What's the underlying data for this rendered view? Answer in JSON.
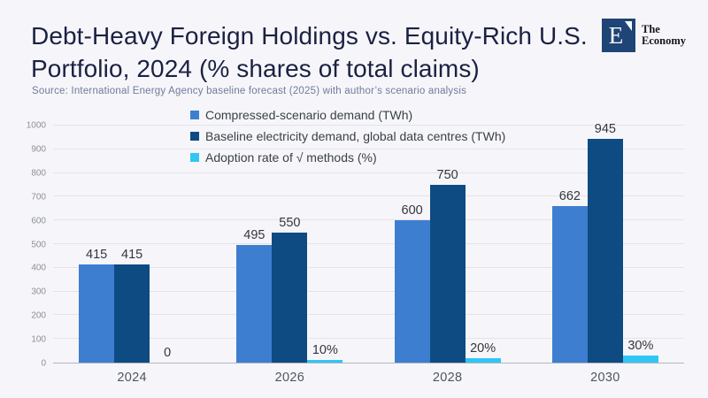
{
  "header": {
    "title": "Debt-Heavy Foreign Holdings vs. Equity-Rich U.S. Portfolio, 2024 (% shares of total claims)",
    "logo": {
      "mark": "E",
      "name_line1": "The",
      "name_line2": "Economy",
      "box_color": "#1f4476"
    }
  },
  "source": "Source:  International Energy Agency baseline forecast (2025) with author’s scenario analysis",
  "chart_data": {
    "type": "bar",
    "title": "Debt-Heavy Foreign Holdings vs. Equity-Rich U.S. Portfolio, 2024 (% shares of total claims)",
    "categories": [
      "2024",
      "2026",
      "2028",
      "2030"
    ],
    "series": [
      {
        "name": "Compressed-scenario demand (TWh)",
        "color": "#3d7ed0",
        "values": [
          415,
          495,
          600,
          662
        ],
        "labels": [
          "415",
          "495",
          "600",
          "662"
        ]
      },
      {
        "name": "Baseline electricity demand, global data centres (TWh)",
        "color": "#0e4b82",
        "values": [
          415,
          550,
          750,
          945
        ],
        "labels": [
          "415",
          "550",
          "750",
          "945"
        ]
      },
      {
        "name": "Adoption rate of √ methods (%)",
        "color": "#2fc6f5",
        "values": [
          0,
          10,
          20,
          30
        ],
        "labels": [
          "0",
          "10%",
          "20%",
          "30%"
        ]
      }
    ],
    "xlabel": "",
    "ylabel": "",
    "ylim": [
      0,
      1000
    ],
    "yticks": [
      0,
      100,
      200,
      300,
      400,
      500,
      600,
      700,
      800,
      900,
      1000
    ],
    "grid": true,
    "legend_position": "top-center",
    "colors": {
      "background": "#f6f6fa",
      "gridline": "#e3e3e9",
      "axis_line": "#b3b6bf",
      "tick_label": "#8b9097",
      "value_label": "#33363b"
    }
  }
}
